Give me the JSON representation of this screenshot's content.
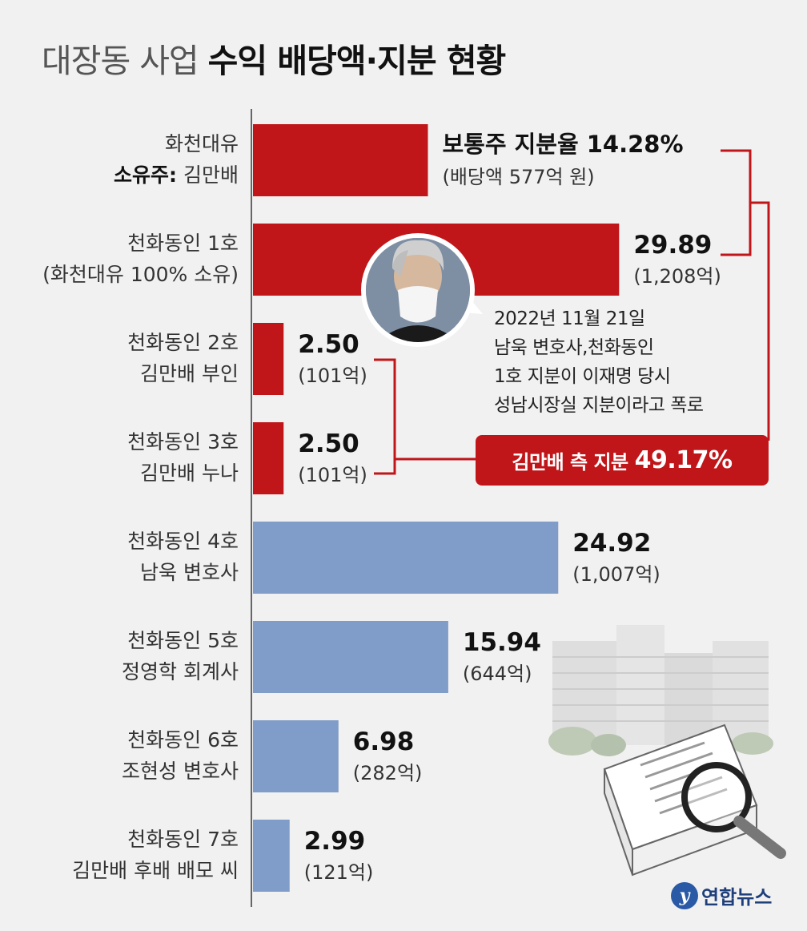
{
  "title": {
    "light": "대장동 사업 ",
    "bold": "수익 배당액·지분 현황"
  },
  "colors": {
    "kim_side": "#c0161a",
    "others": "#7f9dc8",
    "background": "#f1f1f1"
  },
  "chart_data": {
    "type": "bar",
    "orientation": "horizontal",
    "value_unit": "%",
    "amount_unit": "억",
    "bars": [
      {
        "line1": "화천대유",
        "line2_bold": "소유주:",
        "line2": " 김만배",
        "value": 14.28,
        "value_label": "보통주 지분율",
        "value_text": "14.28",
        "value_suffix": "%",
        "amount_text": "(배당액 577억 원)",
        "group": "kim"
      },
      {
        "line1": "천화동인 1호",
        "line2": "(화천대유 100% 소유)",
        "value": 29.89,
        "value_text": "29.89",
        "amount_text": "(1,208억)",
        "group": "kim"
      },
      {
        "line1": "천화동인 2호",
        "line2": "김만배 부인",
        "value": 2.5,
        "value_text": "2.50",
        "amount_text": "(101억)",
        "group": "kim"
      },
      {
        "line1": "천화동인 3호",
        "line2": "김만배 누나",
        "value": 2.5,
        "value_text": "2.50",
        "amount_text": "(101억)",
        "group": "kim"
      },
      {
        "line1": "천화동인 4호",
        "line2": "남욱 변호사",
        "value": 24.92,
        "value_text": "24.92",
        "amount_text": "(1,007억)",
        "group": "other"
      },
      {
        "line1": "천화동인 5호",
        "line2": "정영학 회계사",
        "value": 15.94,
        "value_text": "15.94",
        "amount_text": "(644억)",
        "group": "other"
      },
      {
        "line1": "천화동인 6호",
        "line2": "조현성 변호사",
        "value": 6.98,
        "value_text": "6.98",
        "amount_text": "(282억)",
        "group": "other"
      },
      {
        "line1": "천화동인 7호",
        "line2": "김만배 후배 배모 씨",
        "value": 2.99,
        "value_text": "2.99",
        "amount_text": "(121억)",
        "group": "other"
      }
    ]
  },
  "annotation": {
    "lines": [
      "2022년 11월 21일",
      "남욱 변호사,천화동인",
      "1호 지분이 이재명 당시",
      "성남시장실 지분이라고 폭로"
    ]
  },
  "kim_total": {
    "label": "김만배 측 지분",
    "value": "49.17%"
  },
  "logo": {
    "mark": "y",
    "text": "연합뉴스"
  },
  "icons": [
    "person-photo-icon",
    "apartment-buildings-icon",
    "document-stack-icon",
    "magnifier-icon"
  ]
}
